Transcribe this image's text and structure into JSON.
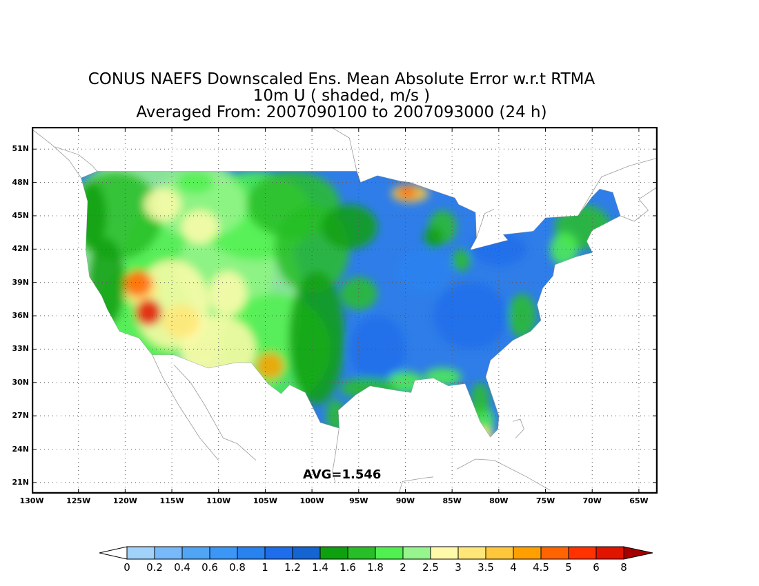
{
  "title": {
    "line1": "CONUS NAEFS Downscaled Ens. Mean Absolute Error w.r.t RTMA",
    "line2": "10m U ( shaded, m/s )",
    "line3": "Averaged From: 2007090100 to 2007093000 (24 h)"
  },
  "map": {
    "lon_min": -130,
    "lon_max": -63,
    "lat_min": 20,
    "lat_max": 53,
    "lat_ticks": [
      {
        "value": 51,
        "label": "51N"
      },
      {
        "value": 48,
        "label": "48N"
      },
      {
        "value": 45,
        "label": "45N"
      },
      {
        "value": 42,
        "label": "42N"
      },
      {
        "value": 39,
        "label": "39N"
      },
      {
        "value": 36,
        "label": "36N"
      },
      {
        "value": 33,
        "label": "33N"
      },
      {
        "value": 30,
        "label": "30N"
      },
      {
        "value": 27,
        "label": "27N"
      },
      {
        "value": 24,
        "label": "24N"
      },
      {
        "value": 21,
        "label": "21N"
      }
    ],
    "lon_ticks": [
      {
        "value": -130,
        "label": "130W"
      },
      {
        "value": -125,
        "label": "125W"
      },
      {
        "value": -120,
        "label": "120W"
      },
      {
        "value": -115,
        "label": "115W"
      },
      {
        "value": -110,
        "label": "110W"
      },
      {
        "value": -105,
        "label": "105W"
      },
      {
        "value": -100,
        "label": "100W"
      },
      {
        "value": -95,
        "label": "95W"
      },
      {
        "value": -90,
        "label": "90W"
      },
      {
        "value": -85,
        "label": "85W"
      },
      {
        "value": -80,
        "label": "80W"
      },
      {
        "value": -75,
        "label": "75W"
      },
      {
        "value": -70,
        "label": "70W"
      },
      {
        "value": -65,
        "label": "65W"
      }
    ],
    "grid": true,
    "avg_label": "AVG=1.546"
  },
  "colorbar": {
    "labels": [
      "0",
      "0.2",
      "0.4",
      "0.6",
      "0.8",
      "1",
      "1.2",
      "1.4",
      "1.6",
      "1.8",
      "2",
      "2.5",
      "3",
      "3.5",
      "4",
      "4.5",
      "5",
      "6",
      "8"
    ],
    "colors": [
      "#a0d2fa",
      "#78b9fa",
      "#50a5f5",
      "#3c96f5",
      "#2882f0",
      "#1e6eeb",
      "#1464d2",
      "#0fa00f",
      "#28be28",
      "#50f050",
      "#96f58c",
      "#fffaaa",
      "#ffe678",
      "#ffc83c",
      "#ffa000",
      "#ff6400",
      "#ff3200",
      "#e11400",
      "#a50000"
    ],
    "under_color": "#ffffff",
    "over_color": "#a50000"
  }
}
